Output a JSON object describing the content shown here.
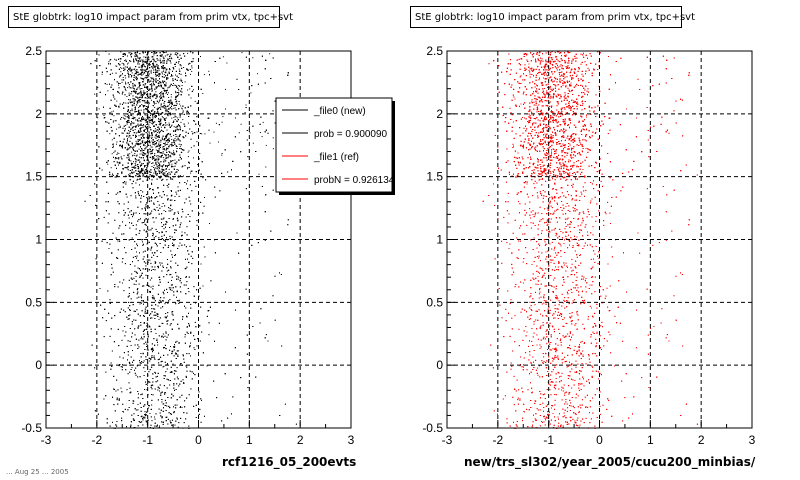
{
  "chart_data": [
    {
      "type": "scatter",
      "title": "StE globtrk: log10 impact param from prim vtx, tpc+svt",
      "xlabel": "rcf1216_05_200evts",
      "ylabel": "",
      "xlim": [
        -3,
        3
      ],
      "ylim": [
        -0.5,
        2.5
      ],
      "xticks": [
        "-3",
        "-2",
        "-1",
        "0",
        "1",
        "2",
        "3"
      ],
      "yticks": [
        "-0.5",
        "0",
        "0.5",
        "1",
        "1.5",
        "2",
        "2.5"
      ],
      "grid": true,
      "color": "#000000",
      "legend": {
        "placement": "top-right",
        "entries": [
          {
            "label": "_file0 (new)",
            "color": "#000000"
          },
          {
            "label": "prob = 0.900090",
            "color": "#000000"
          },
          {
            "label": "_file1 (ref)",
            "color": "#ff0000"
          },
          {
            "label": "probN = 0.926134",
            "color": "#ff0000"
          }
        ]
      },
      "density_bands": [
        {
          "y": [
            1.5,
            2.5
          ],
          "x_center": -0.95,
          "x_spread": 0.55,
          "level": "high"
        },
        {
          "y": [
            -0.5,
            1.5
          ],
          "x_center": -0.85,
          "x_spread": 0.65,
          "level": "low"
        }
      ]
    },
    {
      "type": "scatter",
      "title": "StE globtrk: log10 impact param from prim vtx, tpc+svt",
      "xlabel": "new/trs_sl302/year_2005/cucu200_minbias/",
      "ylabel": "",
      "xlim": [
        -3,
        3
      ],
      "ylim": [
        -0.5,
        2.5
      ],
      "xticks": [
        "-3",
        "-2",
        "-1",
        "0",
        "1",
        "2",
        "3"
      ],
      "yticks": [
        "-0.5",
        "0",
        "0.5",
        "1",
        "1.5",
        "2",
        "2.5"
      ],
      "grid": true,
      "color": "#ff0000",
      "density_bands": [
        {
          "y": [
            1.5,
            2.5
          ],
          "x_center": -0.9,
          "x_spread": 0.6,
          "level": "high"
        },
        {
          "y": [
            -0.5,
            1.5
          ],
          "x_center": -0.8,
          "x_spread": 0.7,
          "level": "low"
        }
      ]
    }
  ],
  "footer": "... Aug 25 ... 2005"
}
